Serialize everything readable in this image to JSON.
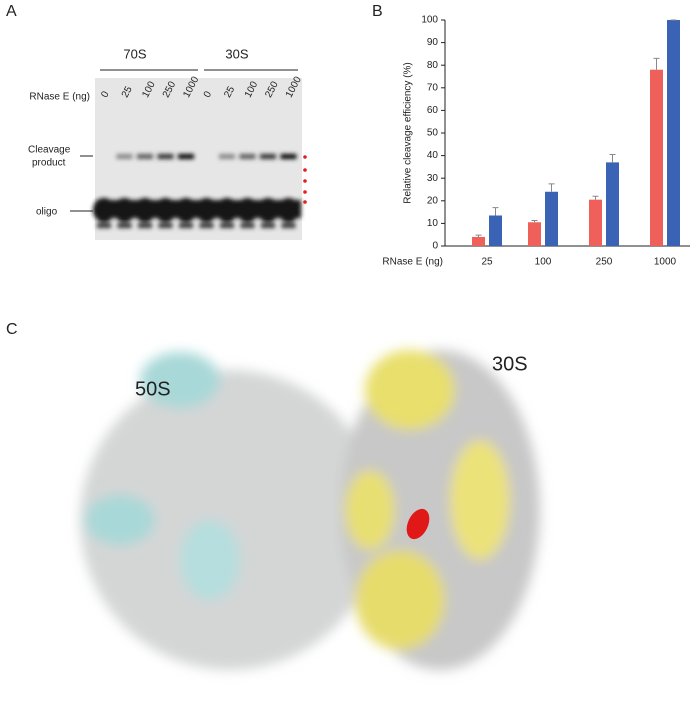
{
  "panels": {
    "A": {
      "label": "A",
      "group_left": "70S",
      "group_right": "30S",
      "row_label": "RNase E (ng)",
      "lanes": [
        "0",
        "25",
        "100",
        "250",
        "1000",
        "0",
        "25",
        "100",
        "250",
        "1000"
      ],
      "cleavage_label": [
        "Cleavage",
        "product"
      ],
      "oligo_label": "oligo"
    },
    "B": {
      "label": "B"
    },
    "C": {
      "label": "C",
      "left_label": "50S",
      "right_label": "30S"
    }
  },
  "chart_data": {
    "type": "bar",
    "ylabel": "Relative cleavage efficiency (%)",
    "xlabel": "RNase E (ng)",
    "categories": [
      "25",
      "100",
      "250",
      "1000"
    ],
    "series": [
      {
        "color": "#f0605a",
        "values": [
          4,
          10.5,
          20.5,
          78
        ],
        "errors": [
          0.8,
          0.8,
          1.5,
          5
        ]
      },
      {
        "color": "#3a62b5",
        "values": [
          13.5,
          24,
          37,
          100
        ],
        "errors": [
          3.5,
          3.5,
          3.5,
          0
        ]
      }
    ],
    "ylim": [
      0,
      100
    ],
    "yticks": [
      0,
      10,
      20,
      30,
      40,
      50,
      60,
      70,
      80,
      90,
      100
    ]
  }
}
